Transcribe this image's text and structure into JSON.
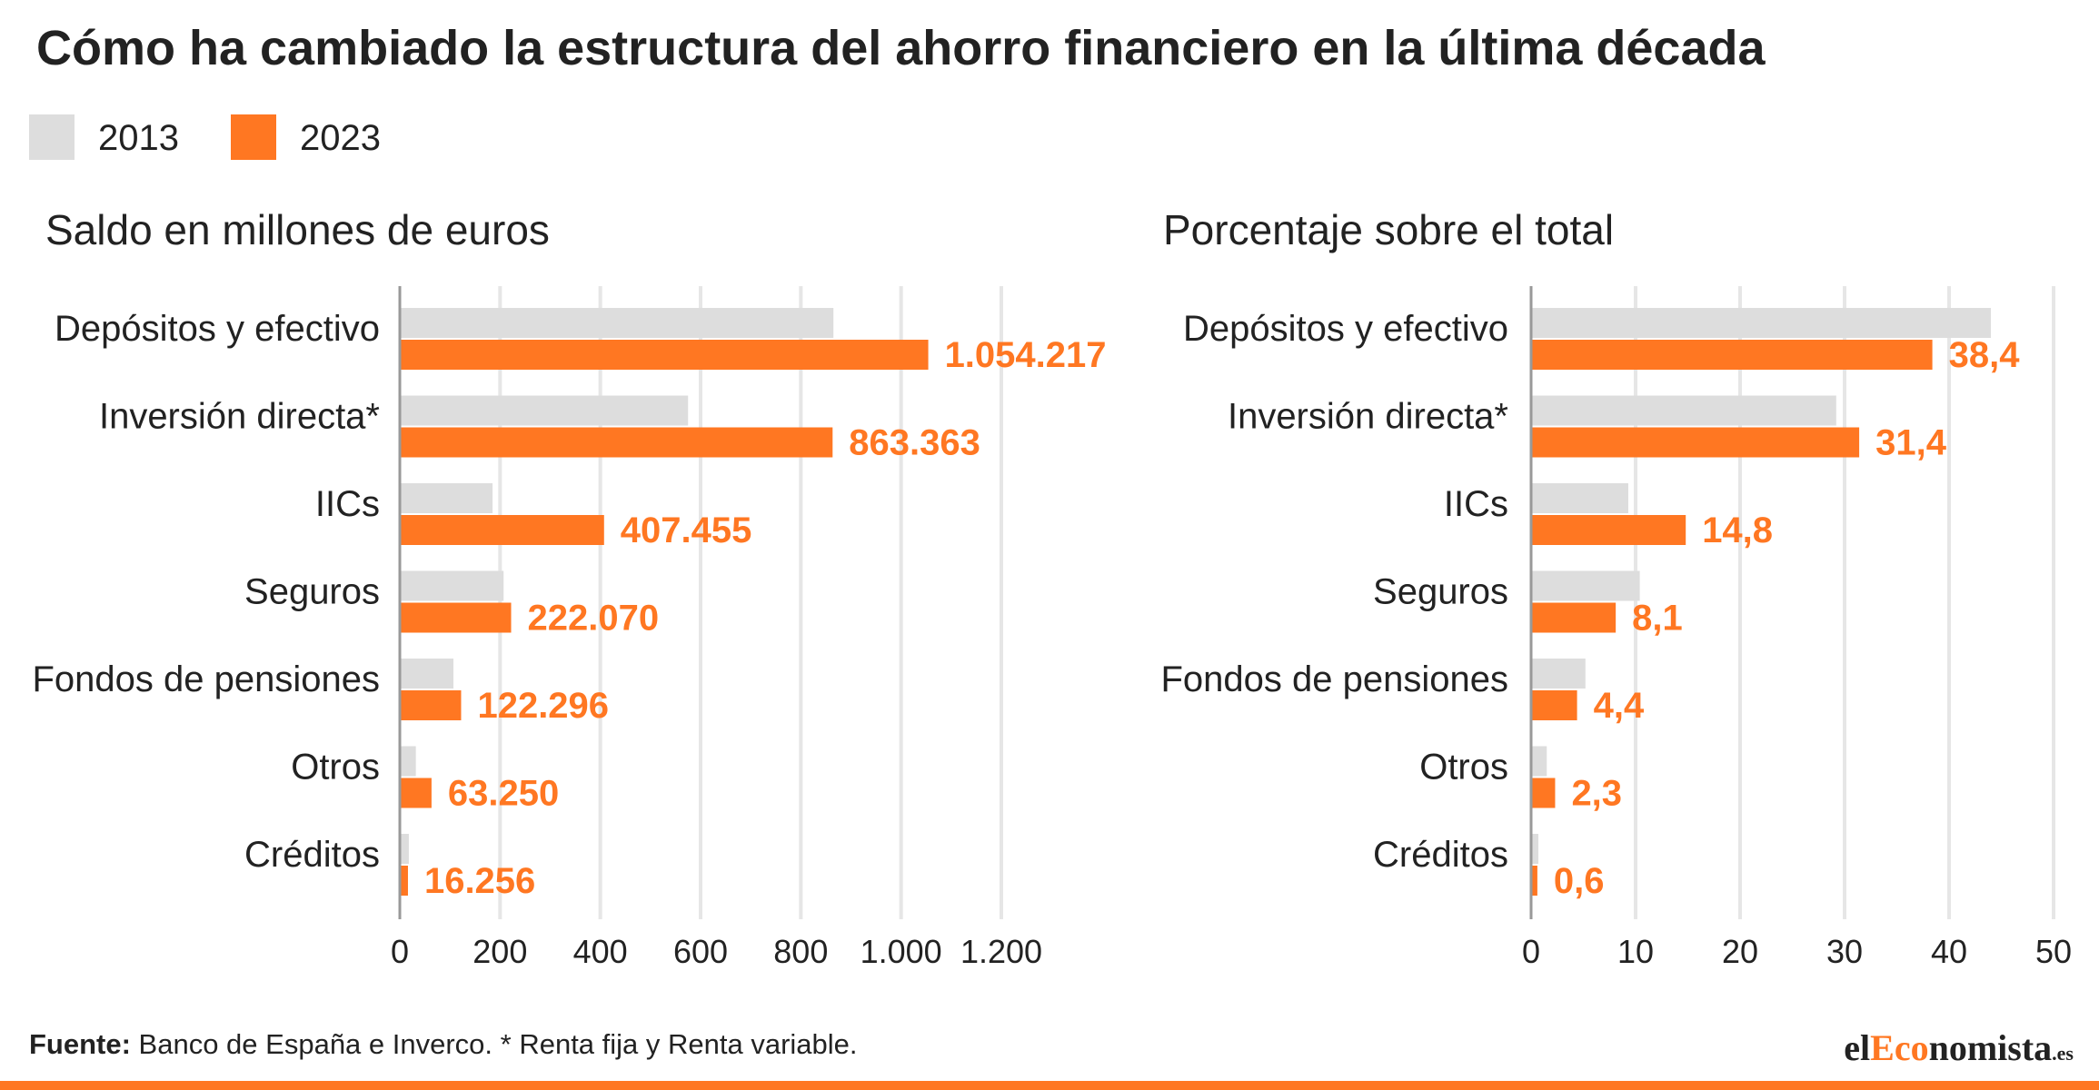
{
  "title": "Cómo ha cambiado la estructura del ahorro financiero en la última década",
  "legend": [
    {
      "label": "2013",
      "color": "#dddddd"
    },
    {
      "label": "2023",
      "color": "#ff7722"
    }
  ],
  "chart_data": [
    {
      "type": "bar",
      "orientation": "horizontal",
      "title": "Saldo en millones de euros",
      "categories": [
        "Depósitos y efectivo",
        "Inversión directa*",
        "IICs",
        "Seguros",
        "Fondos de pensiones",
        "Otros",
        "Créditos"
      ],
      "series": [
        {
          "name": "2013",
          "color": "#dddddd",
          "values": [
            865000,
            575000,
            185000,
            207000,
            107000,
            32000,
            18000
          ]
        },
        {
          "name": "2023",
          "color": "#ff7722",
          "values": [
            1054217,
            863363,
            407455,
            222070,
            122296,
            63250,
            16256
          ],
          "labels": [
            "1.054.217",
            "863.363",
            "407.455",
            "222.070",
            "122.296",
            "63.250",
            "16.256"
          ]
        }
      ],
      "xlim": [
        0,
        1200000
      ],
      "ticks": [
        0,
        200000,
        400000,
        600000,
        800000,
        1000000,
        1200000
      ],
      "tick_labels": [
        "0",
        "200",
        "400",
        "600",
        "800",
        "1.000",
        "1.200"
      ],
      "grid": true
    },
    {
      "type": "bar",
      "orientation": "horizontal",
      "title": "Porcentaje sobre el total",
      "categories": [
        "Depósitos y efectivo",
        "Inversión directa*",
        "IICs",
        "Seguros",
        "Fondos de pensiones",
        "Otros",
        "Créditos"
      ],
      "series": [
        {
          "name": "2013",
          "color": "#dddddd",
          "values": [
            44.0,
            29.2,
            9.3,
            10.4,
            5.2,
            1.5,
            0.7
          ]
        },
        {
          "name": "2023",
          "color": "#ff7722",
          "values": [
            38.4,
            31.4,
            14.8,
            8.1,
            4.4,
            2.3,
            0.6
          ],
          "labels": [
            "38,4",
            "31,4",
            "14,8",
            "8,1",
            "4,4",
            "2,3",
            "0,6"
          ]
        }
      ],
      "xlim": [
        0,
        50
      ],
      "ticks": [
        0,
        10,
        20,
        30,
        40,
        50
      ],
      "tick_labels": [
        "0",
        "10",
        "20",
        "30",
        "40",
        "50"
      ],
      "grid": true
    }
  ],
  "footer": {
    "source_label": "Fuente:",
    "source_text": " Banco de España e Inverco. * Renta fija y Renta variable."
  },
  "logo": {
    "part1": "el",
    "part2": "Eco",
    "part3": "nomista",
    "part4": ".es"
  }
}
